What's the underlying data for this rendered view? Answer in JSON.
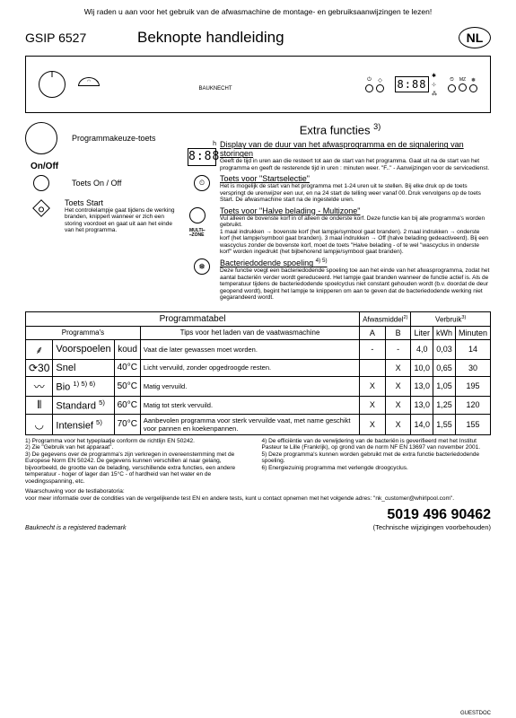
{
  "top_warning": "Wij raden u aan voor het gebruik van de afwasmachine de montage- en gebruiksaanwijzingen te lezen!",
  "model": "GSIP 6527",
  "title": "Beknopte handleiding",
  "lang_badge": "NL",
  "brand": "BAUKNECHT",
  "panel_display": "8:88",
  "extra_title": "Extra functies",
  "extra_sup": "3)",
  "left": {
    "prog_keuze": "Programmakeuze-toets",
    "onoff_head": "On/Off",
    "onoff_label": "Toets On / Off",
    "start_label": "Toets Start",
    "start_desc": "Het controlelampje gaat tijdens de werking branden, knippert wanneer er zich een storing voordoet en gaat uit aan het einde van het programma."
  },
  "fns": {
    "display_head": "Display van de duur van het afwasprogramma en de signalering van storingen",
    "display_desc": "Geeft de tijd in uren aan die resteert tot aan de start van het programma. Gaat uit na de start van het programma en geeft de resterende tijd in uren : minuten weer. \"F..\" - Aanwijzingen voor de servicedienst.",
    "startsel_head": "Toets voor \"Startselectie\"",
    "startsel_desc": "Het is mogelijk de start van het programma met 1-24 uren uit te stellen. Bij elke druk op de toets verspringt de urenwijzer een uur, en na 24 start de telling weer vanaf 00. Druk vervolgens op de toets Start. De afwasmachine start na de ingestelde uren.",
    "multizone_head": "Toets voor \"Halve belading - Multizone\"",
    "multizone_intro": "Vul alleen de bovenste korf in of alleen de onderste korf. Deze functie kan bij alle programma's worden gebruikt.",
    "multizone_desc": "1 maal indrukken → bovenste korf (het lampje/symbool gaat branden). 2 maal indrukken → onderste korf (het lampje/symbool gaat branden). 3 maal indrukken → Off (halve belading gedeactiveerd). Bij een wascyclus zonder de bovenste korf, moet de toets \"Halve belading - of te wel \"wascyclus in onderste korf\" worden ingedrukt (het bijbehorend lampje/symbool gaat branden).",
    "bact_head": "Bacteriedodende spoeling",
    "bact_sup": "4) 5)",
    "bact_desc": "Deze functie voegt een bacteriedodende spoeling toe aan het einde van het afwasprogramma, zodat het aantal bacteriën verder wordt gereduceerd. Het lampje gaat branden wanneer de functie actief is. Als de temperatuur tijdens de bacteriedodende spoelcyclus niet constant gehouden wordt (b.v. doordat de deur geopend wordt), begint het lampje te knipperen om aan te geven dat de bacteriedodende werking niet gegarandeerd wordt.",
    "display_digits": "8:88",
    "h_label": "h",
    "mz_label1": "MULTI",
    "mz_label2": "ZONE"
  },
  "table": {
    "title": "Programmatabel",
    "h_prog": "Programma's",
    "h_tips": "Tips voor het laden van de vaatwasmachine",
    "h_afwas": "Afwasmiddel",
    "h_afwas_sup": "2)",
    "h_verbruik": "Verbruik",
    "h_verbruik_sup": "3)",
    "h_a": "A",
    "h_b": "B",
    "h_liter": "Liter",
    "h_kwh": "kWh",
    "h_min": "Minuten",
    "rows": [
      {
        "icon": "⸙",
        "name": "Voorspoelen",
        "temp": "koud",
        "tip": "Vaat die later gewassen moet worden.",
        "a": "-",
        "b": "-",
        "l": "4,0",
        "k": "0,03",
        "m": "14"
      },
      {
        "icon": "⟳30",
        "name": "Snel",
        "temp": "40°C",
        "tip": "Licht vervuild, zonder opgedroogde resten.",
        "a": "",
        "b": "X",
        "l": "10,0",
        "k": "0,65",
        "m": "30"
      },
      {
        "icon": "〰",
        "name": "Bio",
        "sup": "1) 5) 6)",
        "temp": "50°C",
        "tip": "Matig vervuild.",
        "a": "X",
        "b": "X",
        "l": "13,0",
        "k": "1,05",
        "m": "195"
      },
      {
        "icon": "⦀",
        "name": "Standard",
        "sup": "5)",
        "temp": "60°C",
        "tip": "Matig tot sterk vervuild.",
        "a": "X",
        "b": "X",
        "l": "13,0",
        "k": "1,25",
        "m": "120"
      },
      {
        "icon": "◡",
        "name": "Intensief",
        "sup": "5)",
        "temp": "70°C",
        "tip": "Aanbevolen programma voor sterk vervuilde vaat, met name geschikt voor pannen en koekenpannen.",
        "a": "X",
        "b": "X",
        "l": "14,0",
        "k": "1,55",
        "m": "155"
      }
    ]
  },
  "footnotes_left": [
    "1)   Programma voor het typeplaatje conform de richtlijn EN 50242.",
    "2)   Zie \"Gebruik van het apparaat\".",
    "3)   De gegevens over de programma's zijn verkregen in overeenstemming met de Europese Norm EN 50242. De gegevens kunnen verschillen al naar gelang, bijvoorbeeld, de grootte van de belading, verschillende extra functies, een andere temperatuur - hoger of lager dan 15°C - of hardheid van het water en de voedingsspanning, etc."
  ],
  "footnotes_right": [
    "4)   De efficiëntie van de verwijdering van de bacteriën is geverifieerd met het Institut Pasteur te Lille (Frankrijk), op grond van de norm NF EN 13697 van november 2001.",
    "5)   Deze programma's kunnen worden gebruikt met de extra functie bacteriedodende spoeling.",
    "6)   Energiezuinig programma met verlengde droogcyclus."
  ],
  "testwarn": "Waarschuwing voor de testlaboratoria:\nvoor meer informatie over de condities van de vergelijkende test EN en andere tests, kunt u contact opnemen met het volgende adres: \"nk_customer@whirlpool.com\".",
  "trademark": "Bauknecht is a registered trademark",
  "docnum": "5019 496 90462",
  "docnote": "(Technische wijzigingen voorbehouden)",
  "guestdoc": "GUESTDOC"
}
